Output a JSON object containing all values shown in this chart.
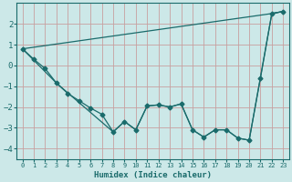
{
  "xlabel": "Humidex (Indice chaleur)",
  "ylabel": "",
  "bg_color": "#cce8e8",
  "grid_color": "#9ec8c8",
  "line_color": "#1a6b6b",
  "xlim": [
    -0.5,
    23.5
  ],
  "ylim": [
    -4.5,
    3.0
  ],
  "xticks": [
    0,
    1,
    2,
    3,
    4,
    5,
    6,
    7,
    8,
    9,
    10,
    11,
    12,
    13,
    14,
    15,
    16,
    17,
    18,
    19,
    20,
    21,
    22,
    23
  ],
  "yticks": [
    -4,
    -3,
    -2,
    -1,
    0,
    1,
    2
  ],
  "line1_x": [
    0,
    1,
    2,
    3,
    4,
    5,
    6,
    7,
    8,
    9,
    10,
    11,
    12,
    13,
    14,
    15,
    16,
    17,
    18,
    19,
    20,
    21,
    22,
    23
  ],
  "line1_y": [
    0.8,
    0.3,
    -0.15,
    -0.85,
    -1.35,
    -1.7,
    -2.05,
    -2.35,
    -3.2,
    -2.7,
    -3.1,
    -1.95,
    -1.9,
    -2.0,
    -1.85,
    -3.1,
    -3.45,
    -3.1,
    -3.1,
    -3.5,
    -3.6,
    -0.6,
    2.5,
    2.6
  ],
  "line2_x": [
    0,
    22,
    23
  ],
  "line2_y": [
    0.8,
    2.5,
    2.6
  ],
  "line3_x": [
    0,
    3,
    8,
    9,
    10,
    11,
    12,
    13,
    14,
    15,
    16,
    17,
    18,
    19,
    20,
    22,
    23
  ],
  "line3_y": [
    0.8,
    -0.85,
    -3.2,
    -2.7,
    -3.1,
    -1.95,
    -1.9,
    -2.0,
    -1.85,
    -3.1,
    -3.45,
    -3.1,
    -3.1,
    -3.5,
    -3.6,
    2.5,
    2.6
  ]
}
